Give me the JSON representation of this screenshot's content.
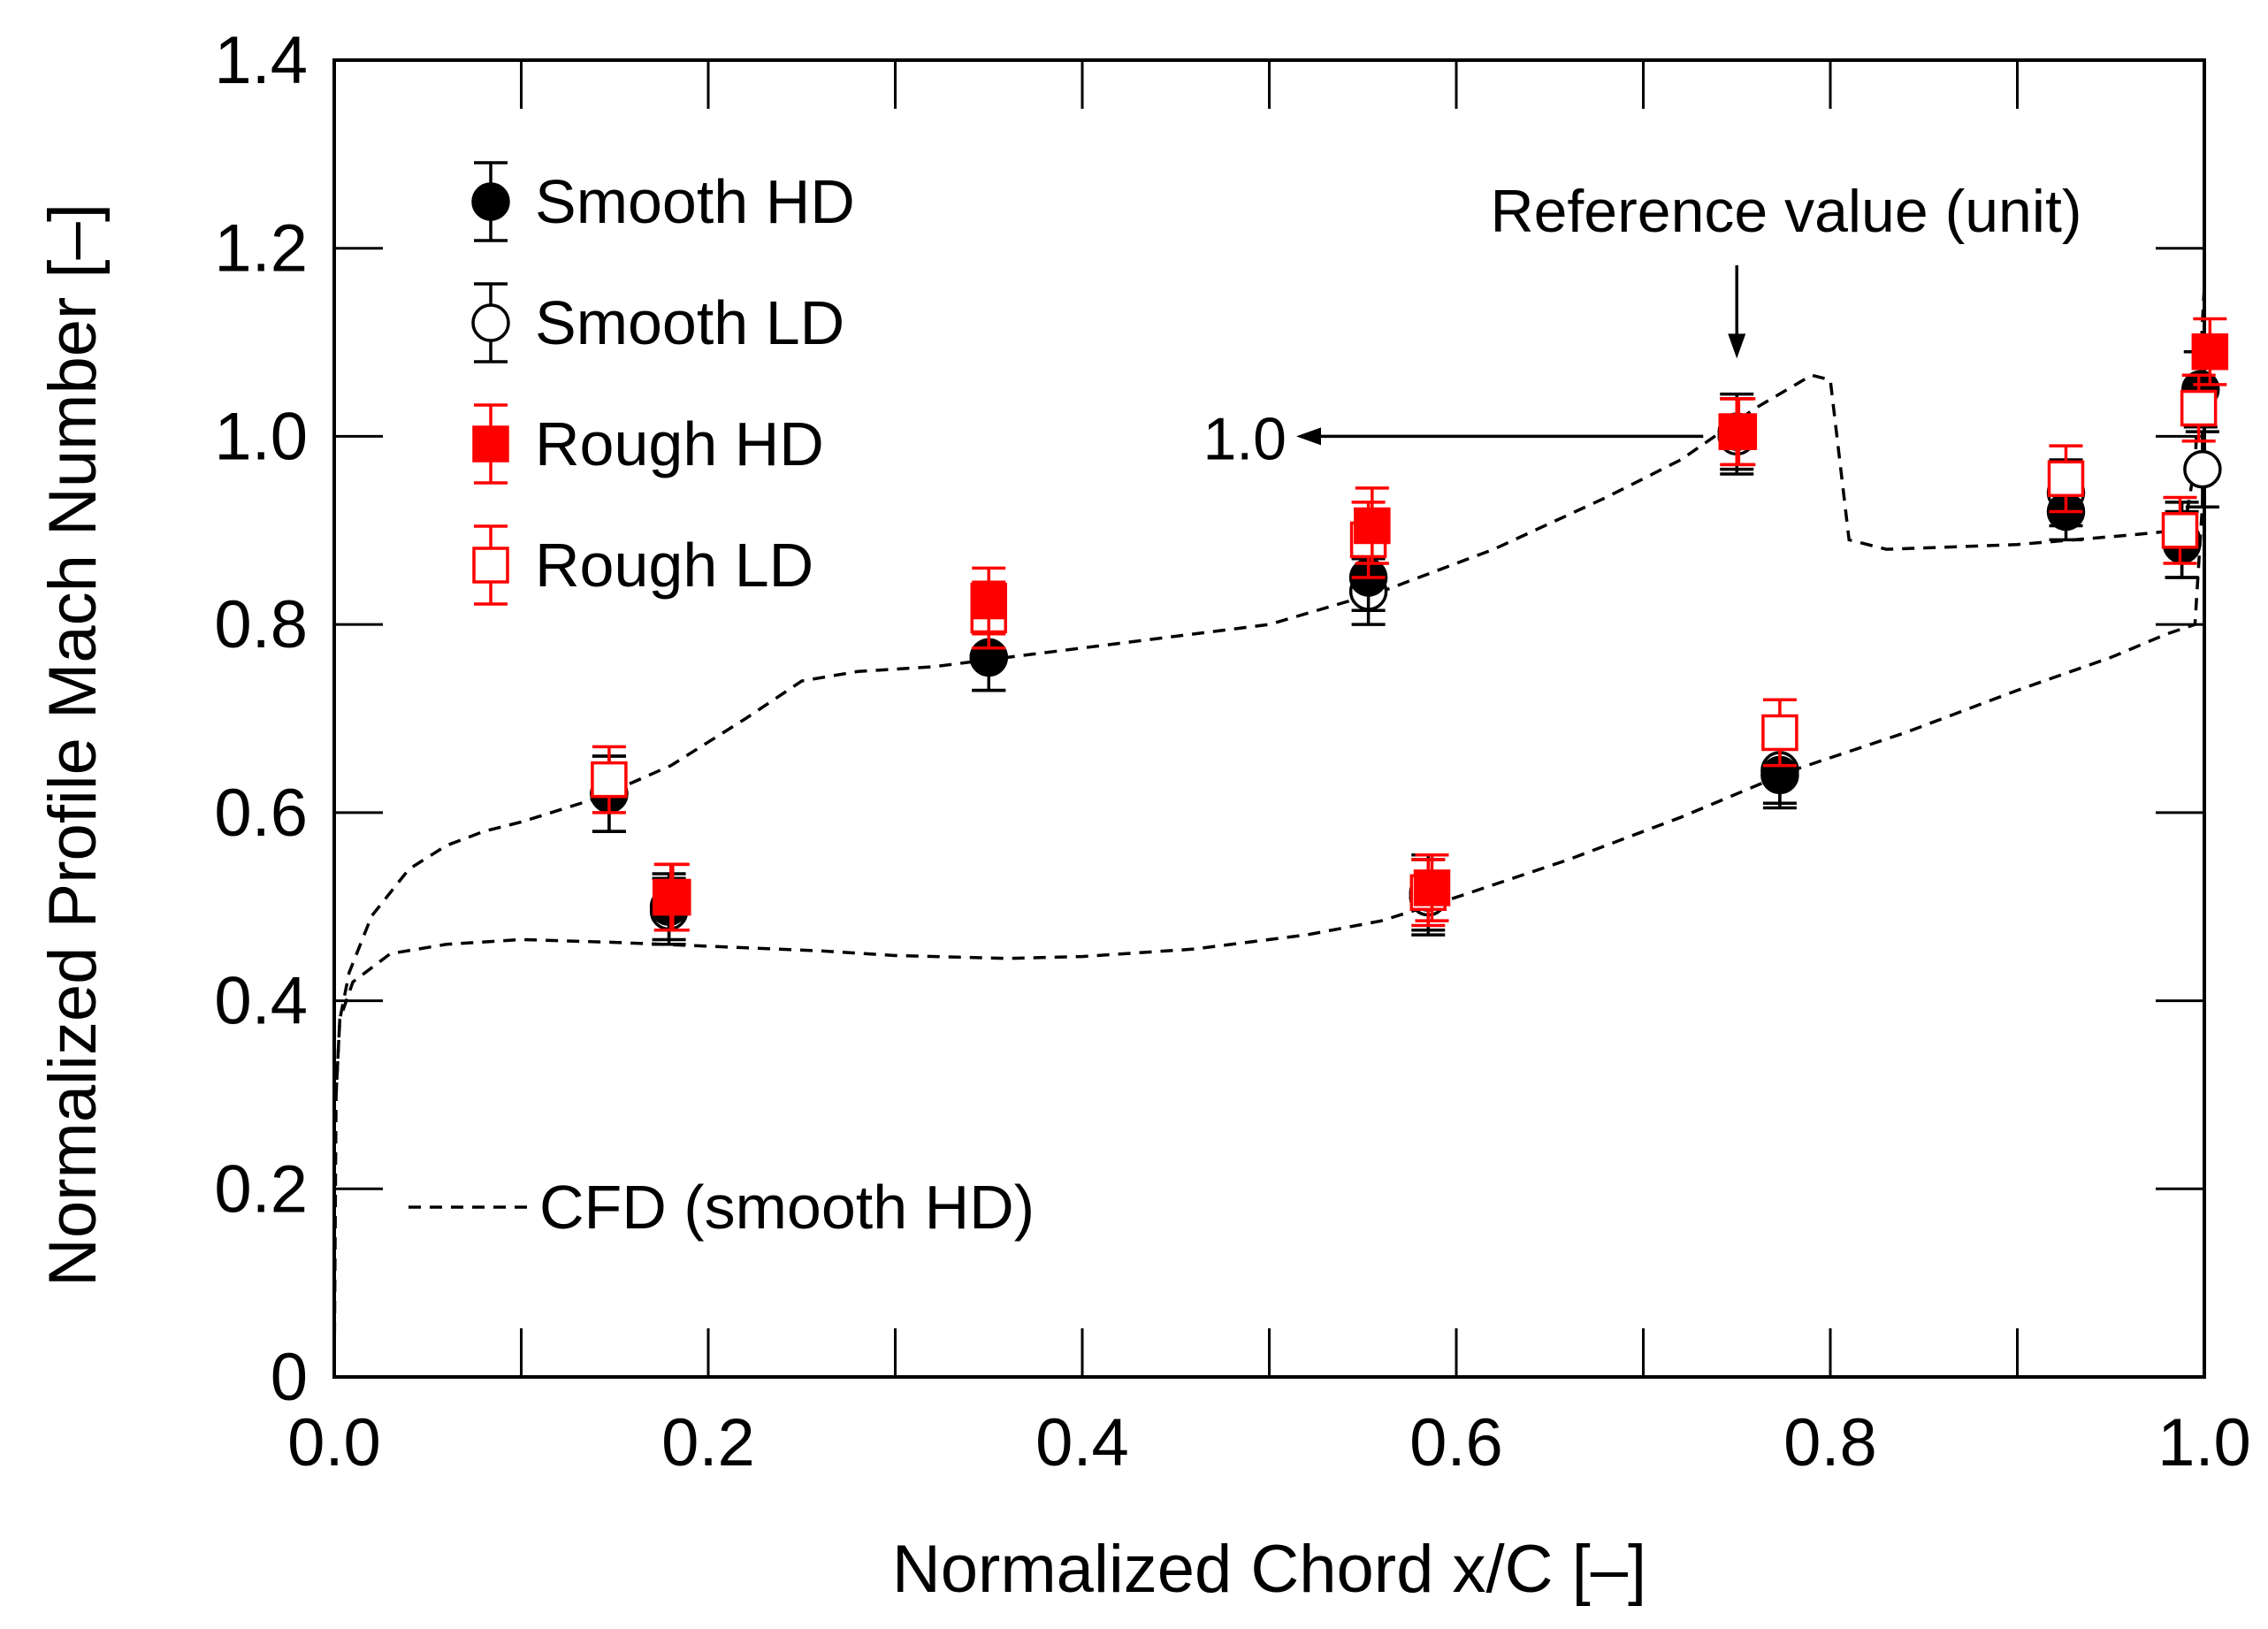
{
  "chart_data": {
    "type": "scatter",
    "title": "",
    "xlabel": "Normalized Chord x/C  [–]",
    "ylabel": "Normalized Profile Mach Number [–]",
    "xlim": [
      0.0,
      1.0
    ],
    "ylim": [
      0.0,
      1.4
    ],
    "grid": false,
    "x_ticks": [
      0.0,
      0.2,
      0.4,
      0.6,
      0.8,
      1.0
    ],
    "x_tick_labels": [
      "0.0",
      "0.2",
      "0.4",
      "0.6",
      "0.8",
      "1.0"
    ],
    "y_ticks": [
      0.0,
      0.2,
      0.4,
      0.6,
      0.8,
      1.0,
      1.2,
      1.4
    ],
    "y_tick_labels": [
      "0",
      "0.2",
      "0.4",
      "0.6",
      "0.8",
      "1.0",
      "1.2",
      "1.4"
    ],
    "legend_position": "top-left",
    "series": [
      {
        "name": "Smooth HD",
        "marker": "circle",
        "filled": true,
        "color": "#000000",
        "points": [
          {
            "x": 0.147,
            "y": 0.62,
            "err": 0.04
          },
          {
            "x": 0.179,
            "y": 0.5,
            "err": 0.035
          },
          {
            "x": 0.35,
            "y": 0.765,
            "err": 0.035
          },
          {
            "x": 0.553,
            "y": 0.85,
            "err": 0.035
          },
          {
            "x": 0.585,
            "y": 0.515,
            "err": 0.04
          },
          {
            "x": 0.75,
            "y": 1.005,
            "err": 0.04
          },
          {
            "x": 0.773,
            "y": 0.64,
            "err": 0.035
          },
          {
            "x": 0.926,
            "y": 0.92,
            "err": 0.03
          },
          {
            "x": 0.988,
            "y": 0.885,
            "err": 0.035
          },
          {
            "x": 0.998,
            "y": 1.05,
            "err": 0.04
          }
        ]
      },
      {
        "name": "Smooth LD",
        "marker": "circle",
        "filled": false,
        "color": "#000000",
        "points": [
          {
            "x": 0.147,
            "y": 0.62,
            "err": 0.04
          },
          {
            "x": 0.179,
            "y": 0.495,
            "err": 0.035
          },
          {
            "x": 0.35,
            "y": 0.765,
            "err": 0.035
          },
          {
            "x": 0.553,
            "y": 0.835,
            "err": 0.035
          },
          {
            "x": 0.585,
            "y": 0.51,
            "err": 0.04
          },
          {
            "x": 0.75,
            "y": 1.0,
            "err": 0.04
          },
          {
            "x": 0.773,
            "y": 0.645,
            "err": 0.035
          },
          {
            "x": 0.926,
            "y": 0.94,
            "err": 0.035
          },
          {
            "x": 0.988,
            "y": 0.89,
            "err": 0.04
          },
          {
            "x": 0.999,
            "y": 0.965,
            "err": 0.04
          }
        ]
      },
      {
        "name": "Rough HD",
        "marker": "square",
        "filled": true,
        "color": "#ff0000",
        "points": [
          {
            "x": 0.181,
            "y": 0.51,
            "err": 0.035
          },
          {
            "x": 0.35,
            "y": 0.825,
            "err": 0.035
          },
          {
            "x": 0.555,
            "y": 0.905,
            "err": 0.04
          },
          {
            "x": 0.587,
            "y": 0.52,
            "err": 0.035
          },
          {
            "x": 0.751,
            "y": 1.005,
            "err": 0.035
          },
          {
            "x": 1.003,
            "y": 1.09,
            "err": 0.035
          }
        ]
      },
      {
        "name": "Rough LD",
        "marker": "square",
        "filled": false,
        "color": "#ff0000",
        "points": [
          {
            "x": 0.147,
            "y": 0.635,
            "err": 0.035
          },
          {
            "x": 0.18,
            "y": 0.51,
            "err": 0.035
          },
          {
            "x": 0.35,
            "y": 0.81,
            "err": 0.035
          },
          {
            "x": 0.553,
            "y": 0.89,
            "err": 0.04
          },
          {
            "x": 0.585,
            "y": 0.515,
            "err": 0.035
          },
          {
            "x": 0.75,
            "y": 1.005,
            "err": 0.035
          },
          {
            "x": 0.773,
            "y": 0.685,
            "err": 0.035
          },
          {
            "x": 0.926,
            "y": 0.955,
            "err": 0.035
          },
          {
            "x": 0.987,
            "y": 0.9,
            "err": 0.035
          },
          {
            "x": 0.997,
            "y": 1.03,
            "err": 0.035
          }
        ]
      }
    ],
    "cfd": {
      "name": "CFD (smooth HD)",
      "style": "dashed",
      "upper": [
        [
          0.0,
          0.0
        ],
        [
          0.001,
          0.3
        ],
        [
          0.003,
          0.38
        ],
        [
          0.008,
          0.43
        ],
        [
          0.02,
          0.49
        ],
        [
          0.04,
          0.54
        ],
        [
          0.06,
          0.565
        ],
        [
          0.08,
          0.58
        ],
        [
          0.1,
          0.59
        ],
        [
          0.14,
          0.615
        ],
        [
          0.18,
          0.65
        ],
        [
          0.22,
          0.7
        ],
        [
          0.25,
          0.74
        ],
        [
          0.28,
          0.75
        ],
        [
          0.32,
          0.755
        ],
        [
          0.38,
          0.77
        ],
        [
          0.44,
          0.785
        ],
        [
          0.5,
          0.8
        ],
        [
          0.56,
          0.835
        ],
        [
          0.62,
          0.88
        ],
        [
          0.68,
          0.935
        ],
        [
          0.72,
          0.975
        ],
        [
          0.76,
          1.03
        ],
        [
          0.79,
          1.065
        ],
        [
          0.8,
          1.06
        ],
        [
          0.81,
          0.89
        ],
        [
          0.83,
          0.88
        ],
        [
          0.9,
          0.885
        ],
        [
          0.96,
          0.895
        ],
        [
          0.985,
          0.9
        ],
        [
          0.99,
          0.91
        ],
        [
          0.995,
          0.97
        ],
        [
          1.0,
          1.16
        ]
      ],
      "lower": [
        [
          0.001,
          0.3
        ],
        [
          0.003,
          0.38
        ],
        [
          0.01,
          0.42
        ],
        [
          0.03,
          0.45
        ],
        [
          0.06,
          0.46
        ],
        [
          0.1,
          0.465
        ],
        [
          0.15,
          0.462
        ],
        [
          0.2,
          0.458
        ],
        [
          0.26,
          0.453
        ],
        [
          0.3,
          0.448
        ],
        [
          0.36,
          0.445
        ],
        [
          0.4,
          0.447
        ],
        [
          0.46,
          0.455
        ],
        [
          0.52,
          0.47
        ],
        [
          0.56,
          0.485
        ],
        [
          0.6,
          0.51
        ],
        [
          0.66,
          0.55
        ],
        [
          0.72,
          0.595
        ],
        [
          0.78,
          0.645
        ],
        [
          0.84,
          0.685
        ],
        [
          0.9,
          0.73
        ],
        [
          0.95,
          0.765
        ],
        [
          0.98,
          0.79
        ],
        [
          0.995,
          0.8
        ],
        [
          1.0,
          0.96
        ]
      ]
    },
    "annotations": {
      "reference_label": "Reference value (unit)",
      "reference_point": {
        "x": 0.75,
        "y": 1.0
      },
      "arrow_value": "1.0"
    }
  }
}
